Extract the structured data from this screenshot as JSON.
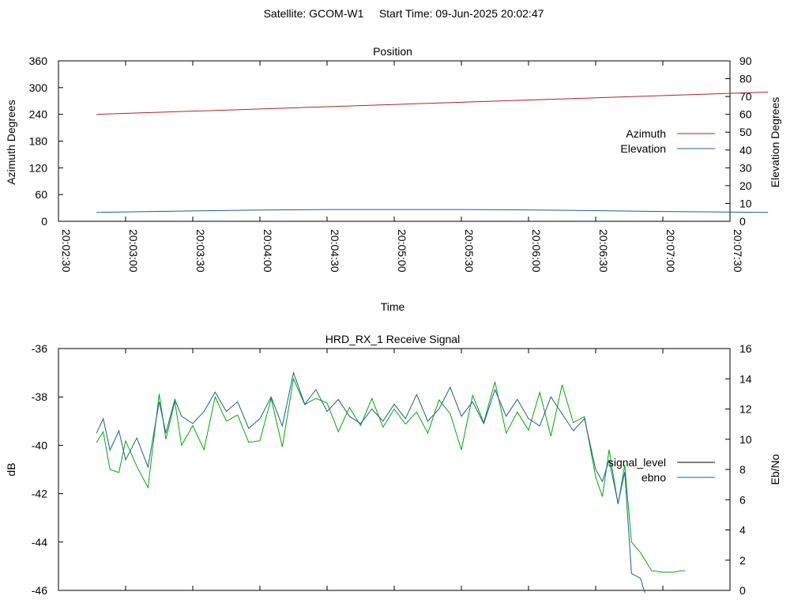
{
  "page_title": "Satellite: GCOM-W1     Start Time: 09-Jun-2025 20:02:47",
  "chart_data": [
    {
      "type": "line",
      "title": "Position",
      "xlabel": "Time",
      "ylabel": "Azimuth Degrees",
      "y2label": "Elevation Degrees",
      "ylim": [
        0,
        360
      ],
      "y2lim": [
        0,
        90
      ],
      "yticks": [
        "0",
        "60",
        "120",
        "180",
        "240",
        "300",
        "360"
      ],
      "y2ticks": [
        "0",
        "10",
        "20",
        "30",
        "40",
        "50",
        "60",
        "70",
        "80",
        "90"
      ],
      "xticks": [
        "20:02:30",
        "20:03:00",
        "20:03:30",
        "20:04:00",
        "20:04:30",
        "20:05:00",
        "20:05:30",
        "20:06:00",
        "20:06:30",
        "20:07:00",
        "20:07:30"
      ],
      "xlim_seconds": [
        0,
        300
      ],
      "legend_position": "right",
      "grid": false,
      "series": [
        {
          "name": "Azimuth",
          "axis": "left",
          "color": "#b22222",
          "x": [
            "20:02:47",
            "20:07:47"
          ],
          "values": [
            240,
            290
          ]
        },
        {
          "name": "Elevation",
          "axis": "right",
          "color": "#1f5c99",
          "x": [
            "20:02:47",
            "20:03:30",
            "20:04:00",
            "20:04:30",
            "20:05:30",
            "20:06:00",
            "20:06:30",
            "20:07:00",
            "20:07:47"
          ],
          "values": [
            5,
            5.8,
            6.3,
            6.6,
            6.6,
            6.4,
            6.0,
            5.5,
            5
          ]
        }
      ]
    },
    {
      "type": "line",
      "title": "HRD_RX_1 Receive Signal",
      "ylabel": "dB",
      "y2label": "Eb/No",
      "ylim": [
        -46,
        -36
      ],
      "y2lim": [
        0,
        16
      ],
      "yticks": [
        "-46",
        "-44",
        "-42",
        "-40",
        "-38",
        "-36"
      ],
      "y2ticks": [
        "0",
        "2",
        "4",
        "6",
        "8",
        "10",
        "12",
        "14",
        "16"
      ],
      "xlim_seconds": [
        0,
        300
      ],
      "legend_position": "right",
      "grid": false,
      "series": [
        {
          "name": "signal_level",
          "axis": "left",
          "color": "#1f5c99",
          "x_seconds": [
            17,
            20,
            23,
            27,
            30,
            35,
            40,
            45,
            48,
            52,
            55,
            60,
            65,
            70,
            75,
            80,
            85,
            90,
            95,
            100,
            105,
            110,
            115,
            120,
            125,
            130,
            135,
            140,
            145,
            150,
            155,
            160,
            165,
            170,
            175,
            180,
            185,
            190,
            195,
            200,
            205,
            210,
            215,
            220,
            225,
            230,
            235,
            240,
            243,
            246,
            250,
            253,
            256,
            260,
            262
          ],
          "values": [
            -39.5,
            -38.9,
            -40.2,
            -39.4,
            -40.6,
            -39.7,
            -40.9,
            -38.2,
            -39.5,
            -38.1,
            -38.8,
            -39.1,
            -38.6,
            -37.8,
            -38.6,
            -38.2,
            -39.3,
            -38.9,
            -38.0,
            -39.2,
            -37.0,
            -38.3,
            -37.7,
            -38.6,
            -38.1,
            -38.8,
            -39.1,
            -38.5,
            -39.0,
            -38.3,
            -38.9,
            -37.9,
            -39.0,
            -38.5,
            -37.6,
            -38.8,
            -38.2,
            -39.1,
            -37.7,
            -38.8,
            -38.1,
            -38.9,
            -39.2,
            -38.0,
            -38.7,
            -39.4,
            -38.9,
            -41.0,
            -41.5,
            -40.6,
            -42.4,
            -41.1,
            -45.3,
            -45.5,
            -46.1
          ]
        },
        {
          "name": "ebno",
          "axis": "right",
          "color": "#00aa00",
          "x_seconds": [
            17,
            20,
            23,
            27,
            30,
            35,
            40,
            45,
            48,
            52,
            55,
            60,
            65,
            70,
            75,
            80,
            85,
            90,
            95,
            100,
            105,
            110,
            115,
            120,
            125,
            130,
            135,
            140,
            145,
            150,
            155,
            160,
            165,
            170,
            175,
            180,
            185,
            190,
            195,
            200,
            205,
            210,
            215,
            220,
            225,
            230,
            235,
            240,
            243,
            246,
            250,
            253,
            256,
            260,
            265,
            270,
            275,
            278,
            280
          ],
          "values": [
            9.8,
            10.5,
            8.0,
            7.8,
            9.9,
            8.2,
            6.8,
            13.0,
            10.0,
            12.5,
            9.6,
            10.9,
            9.3,
            12.8,
            11.2,
            11.6,
            9.8,
            9.9,
            12.7,
            9.5,
            14.0,
            12.3,
            12.7,
            12.4,
            10.5,
            12.1,
            10.9,
            12.7,
            10.8,
            12.0,
            11.0,
            11.8,
            10.4,
            12.6,
            11.7,
            9.3,
            12.9,
            11.1,
            13.8,
            10.4,
            11.8,
            10.6,
            13.1,
            10.2,
            13.6,
            11.1,
            11.5,
            7.5,
            6.2,
            9.3,
            5.7,
            8.3,
            3.2,
            2.5,
            1.3,
            1.2,
            1.2,
            1.3,
            1.3
          ]
        }
      ]
    }
  ]
}
